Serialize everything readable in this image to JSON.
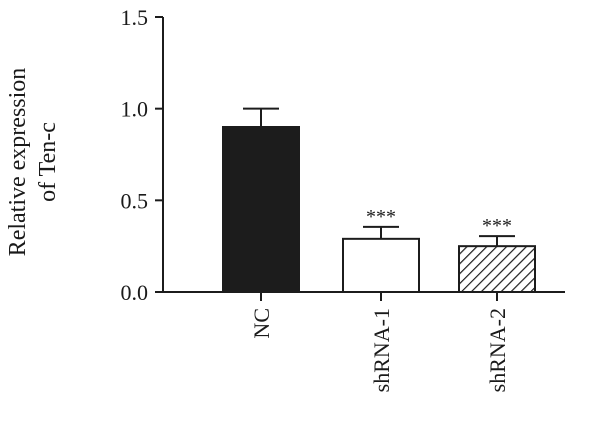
{
  "chart_data": {
    "type": "bar",
    "title": "",
    "xlabel": "",
    "ylabel": [
      "Relative expression",
      "of Ten-c"
    ],
    "ylim": [
      0,
      1.5
    ],
    "yticks": [
      "0.0",
      "0.5",
      "1.0",
      "1.5"
    ],
    "grid": false,
    "legend": "none",
    "categories": [
      "NC",
      "shRNA-1",
      "shRNA-2"
    ],
    "values": [
      0.9,
      0.29,
      0.25
    ],
    "errors": [
      0.1,
      0.065,
      0.055
    ],
    "significance": [
      "",
      "***",
      "***"
    ],
    "fills": [
      "solid-black",
      "white",
      "diagonal-hatch"
    ],
    "colors": {
      "bar_dark": "#1c1c1c",
      "outline": "#1c1c1c",
      "background": "#ffffff"
    }
  }
}
